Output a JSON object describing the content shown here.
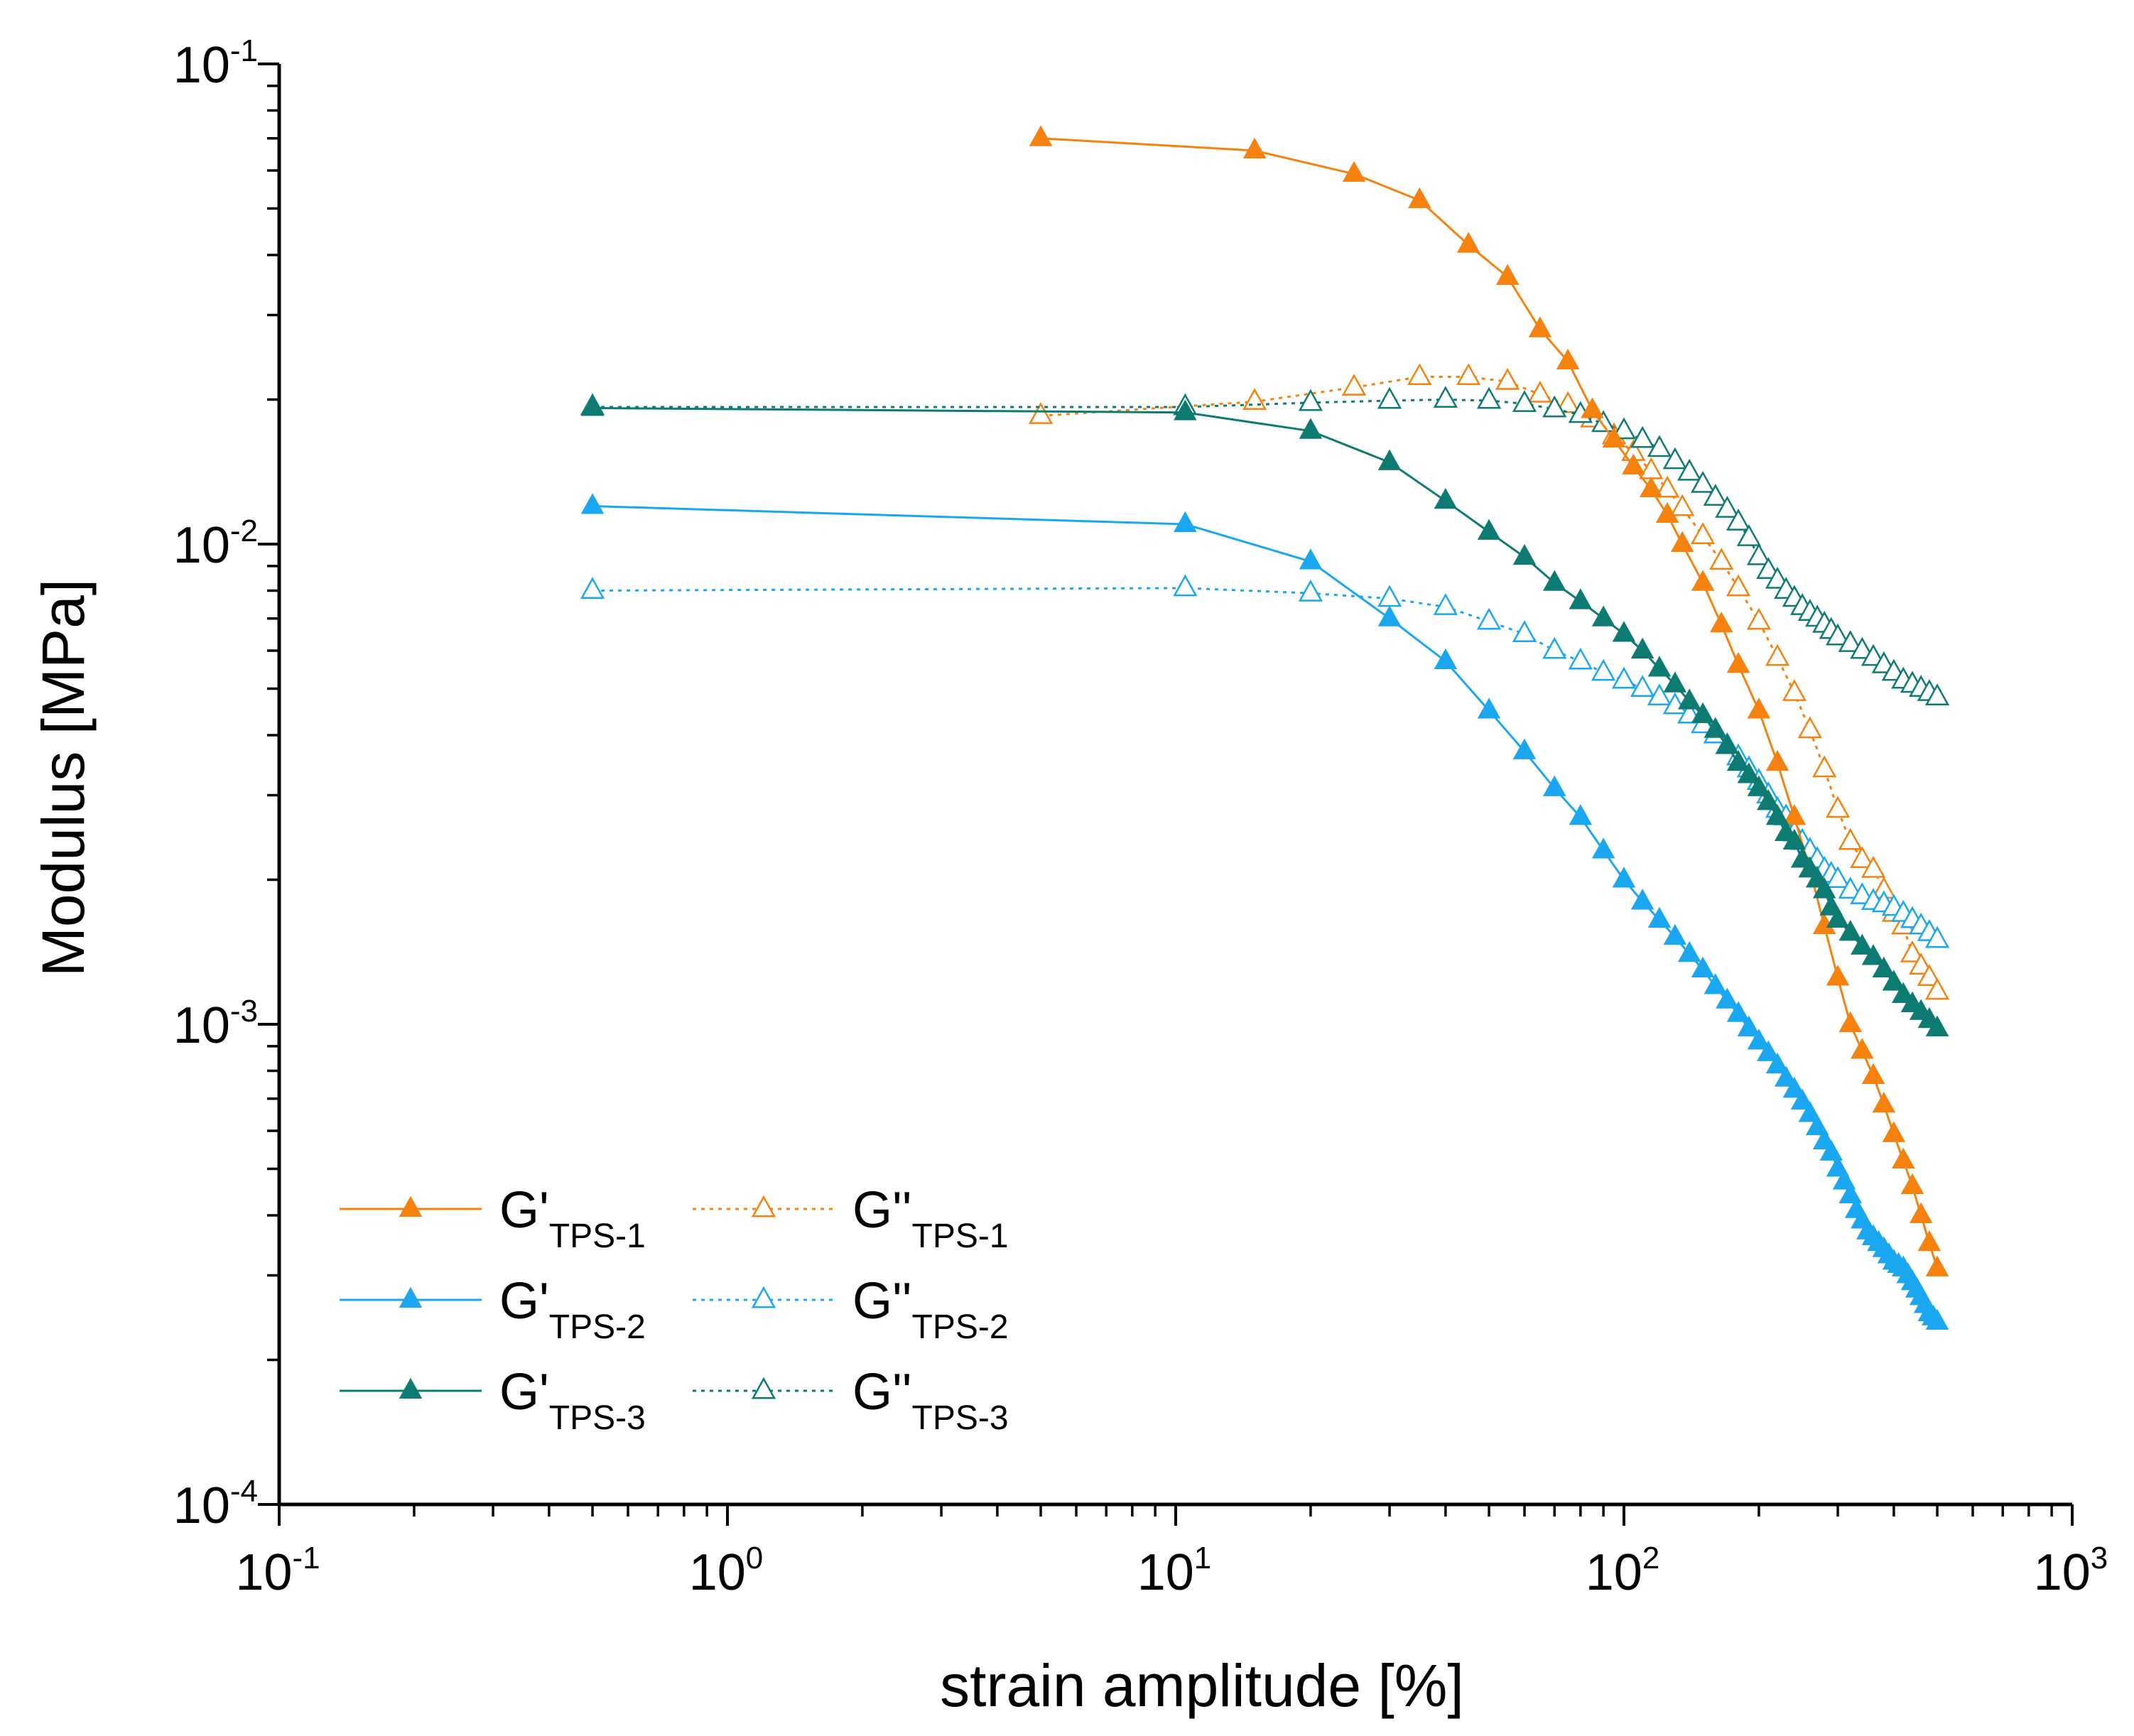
{
  "chart_data": {
    "type": "line",
    "xscale": "log",
    "yscale": "log",
    "xlabel": "strain amplitude [%]",
    "ylabel": "Modulus [MPa]",
    "xlim": [
      0.1,
      1000
    ],
    "ylim": [
      0.0001,
      0.1
    ],
    "x_ticks": [
      {
        "base": "10",
        "exp": "-1",
        "value": 0.1
      },
      {
        "base": "10",
        "exp": "0",
        "value": 1
      },
      {
        "base": "10",
        "exp": "1",
        "value": 10
      },
      {
        "base": "10",
        "exp": "2",
        "value": 100
      },
      {
        "base": "10",
        "exp": "3",
        "value": 1000
      }
    ],
    "y_ticks": [
      {
        "base": "10",
        "exp": "-4",
        "value": 0.0001
      },
      {
        "base": "10",
        "exp": "-3",
        "value": 0.001
      },
      {
        "base": "10",
        "exp": "-2",
        "value": 0.01
      },
      {
        "base": "10",
        "exp": "-1",
        "value": 0.1
      }
    ],
    "legend": {
      "placement": "bottom-left",
      "columns": 2
    },
    "series": [
      {
        "name": "G'TPS-1",
        "main": "G'",
        "sub": "TPS-1",
        "color": "#F5820F",
        "filled": true,
        "dash": "solid",
        "x": [
          5,
          15,
          25,
          35,
          45,
          55,
          65,
          75,
          85,
          95,
          105,
          115,
          125,
          135,
          150,
          165,
          180,
          200,
          220,
          240,
          260,
          280,
          300,
          320,
          340,
          360,
          380,
          400,
          420,
          440,
          460,
          480,
          500
        ],
        "y": [
          0.07,
          0.066,
          0.059,
          0.052,
          0.042,
          0.036,
          0.028,
          0.024,
          0.019,
          0.0165,
          0.0145,
          0.013,
          0.0115,
          0.01,
          0.0083,
          0.0068,
          0.0056,
          0.0045,
          0.0035,
          0.0027,
          0.0021,
          0.0016,
          0.00125,
          0.001,
          0.00088,
          0.00078,
          0.00068,
          0.00059,
          0.00052,
          0.00046,
          0.0004,
          0.00035,
          0.00031
        ]
      },
      {
        "name": "G''TPS-1",
        "main": "G''",
        "sub": "TPS-1",
        "color": "#F5820F",
        "filled": false,
        "dash": "dotted",
        "x": [
          5,
          15,
          25,
          35,
          45,
          55,
          65,
          75,
          85,
          95,
          105,
          115,
          125,
          135,
          150,
          165,
          180,
          200,
          220,
          240,
          260,
          280,
          300,
          320,
          340,
          360,
          380,
          400,
          420,
          440,
          460,
          480,
          500
        ],
        "y": [
          0.0185,
          0.0198,
          0.0212,
          0.0223,
          0.0223,
          0.0218,
          0.0205,
          0.0195,
          0.0182,
          0.0168,
          0.0155,
          0.0142,
          0.013,
          0.0119,
          0.0104,
          0.0092,
          0.0081,
          0.0069,
          0.0058,
          0.0049,
          0.0041,
          0.0034,
          0.0028,
          0.0024,
          0.0022,
          0.0021,
          0.0019,
          0.0017,
          0.0016,
          0.0014,
          0.00132,
          0.00125,
          0.00117
        ]
      },
      {
        "name": "G'TPS-2",
        "main": "G'",
        "sub": "TPS-2",
        "color": "#1AA7F0",
        "filled": true,
        "dash": "solid",
        "x": [
          0.5,
          10.5,
          20,
          30,
          40,
          50,
          60,
          70,
          80,
          90,
          100,
          110,
          120,
          130,
          140,
          150,
          160,
          170,
          180,
          190,
          200,
          210,
          220,
          230,
          240,
          250,
          260,
          270,
          280,
          290,
          300,
          310,
          320,
          330,
          340,
          350,
          360,
          370,
          380,
          390,
          400,
          410,
          420,
          430,
          440,
          450,
          460,
          470,
          480,
          490,
          500
        ],
        "y": [
          0.012,
          0.011,
          0.0092,
          0.007,
          0.0057,
          0.0045,
          0.0037,
          0.0031,
          0.0027,
          0.0023,
          0.002,
          0.0018,
          0.00165,
          0.00152,
          0.0014,
          0.0013,
          0.0012,
          0.00112,
          0.00105,
          0.00098,
          0.00092,
          0.00087,
          0.00082,
          0.00077,
          0.00073,
          0.00069,
          0.00065,
          0.00061,
          0.00057,
          0.00054,
          0.0005,
          0.00047,
          0.00044,
          0.00041,
          0.00039,
          0.00037,
          0.00036,
          0.00035,
          0.00034,
          0.00033,
          0.00032,
          0.000315,
          0.00031,
          0.0003,
          0.00029,
          0.00028,
          0.00027,
          0.00026,
          0.00025,
          0.000245,
          0.00024
        ]
      },
      {
        "name": "G''TPS-2",
        "main": "G''",
        "sub": "TPS-2",
        "color": "#1AA7F0",
        "filled": false,
        "dash": "dotted",
        "x": [
          0.5,
          10.5,
          20,
          30,
          40,
          50,
          60,
          70,
          80,
          90,
          100,
          110,
          120,
          130,
          140,
          150,
          160,
          170,
          180,
          190,
          200,
          210,
          220,
          230,
          240,
          250,
          260,
          270,
          280,
          290,
          300,
          320,
          340,
          360,
          380,
          400,
          420,
          440,
          460,
          480,
          500
        ],
        "y": [
          0.008,
          0.0081,
          0.0079,
          0.0077,
          0.0074,
          0.0069,
          0.0065,
          0.006,
          0.0057,
          0.0054,
          0.0052,
          0.005,
          0.0048,
          0.0046,
          0.0044,
          0.0042,
          0.004,
          0.0038,
          0.0036,
          0.0034,
          0.0032,
          0.003,
          0.0028,
          0.0027,
          0.0025,
          0.0024,
          0.0023,
          0.0022,
          0.0021,
          0.00205,
          0.002,
          0.0019,
          0.00185,
          0.0018,
          0.00178,
          0.00175,
          0.0017,
          0.00165,
          0.0016,
          0.00155,
          0.0015
        ]
      },
      {
        "name": "G'TPS-3",
        "main": "G'",
        "sub": "TPS-3",
        "color": "#0E7B72",
        "filled": true,
        "dash": "solid",
        "x": [
          0.5,
          10.5,
          20,
          30,
          40,
          50,
          60,
          70,
          80,
          90,
          100,
          110,
          120,
          130,
          140,
          150,
          160,
          170,
          180,
          190,
          200,
          210,
          220,
          230,
          240,
          250,
          260,
          270,
          280,
          290,
          300,
          320,
          340,
          360,
          380,
          400,
          420,
          440,
          460,
          480,
          500
        ],
        "y": [
          0.0192,
          0.0188,
          0.0172,
          0.0148,
          0.0123,
          0.0106,
          0.0094,
          0.0083,
          0.0076,
          0.007,
          0.0065,
          0.006,
          0.0055,
          0.0051,
          0.0047,
          0.0044,
          0.0041,
          0.0038,
          0.0035,
          0.0033,
          0.0031,
          0.0029,
          0.0027,
          0.0025,
          0.0024,
          0.0022,
          0.0021,
          0.002,
          0.0019,
          0.00175,
          0.00165,
          0.00155,
          0.00145,
          0.00138,
          0.0013,
          0.00122,
          0.00115,
          0.0011,
          0.00106,
          0.00102,
          0.00098
        ]
      },
      {
        "name": "G''TPS-3",
        "main": "G''",
        "sub": "TPS-3",
        "color": "#0E7B72",
        "filled": false,
        "dash": "dotted",
        "x": [
          0.5,
          10.5,
          20,
          30,
          40,
          50,
          60,
          70,
          80,
          90,
          100,
          110,
          120,
          130,
          140,
          150,
          160,
          170,
          180,
          190,
          200,
          210,
          220,
          230,
          240,
          250,
          260,
          270,
          280,
          290,
          300,
          320,
          340,
          360,
          380,
          400,
          420,
          440,
          460,
          480,
          500
        ],
        "y": [
          0.0193,
          0.0193,
          0.0197,
          0.0199,
          0.02,
          0.0199,
          0.0196,
          0.0191,
          0.0186,
          0.0178,
          0.0172,
          0.0165,
          0.0158,
          0.0149,
          0.0141,
          0.0133,
          0.0125,
          0.0118,
          0.0111,
          0.0103,
          0.0094,
          0.0088,
          0.0084,
          0.008,
          0.0077,
          0.0074,
          0.0072,
          0.007,
          0.0068,
          0.0066,
          0.0064,
          0.0062,
          0.006,
          0.0058,
          0.0056,
          0.0054,
          0.0052,
          0.0051,
          0.005,
          0.0049,
          0.0048
        ]
      }
    ]
  }
}
